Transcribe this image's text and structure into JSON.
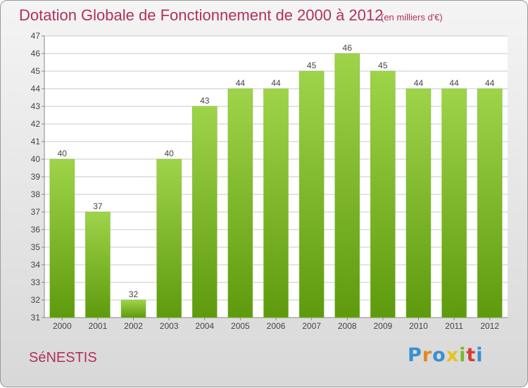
{
  "header": {
    "title": "Dotation Globale de Fonctionnement de 2000 à 2012",
    "unit": "(en milliers d'€)"
  },
  "footer": {
    "commune": "SéNESTIS",
    "brand_letters": [
      "P",
      "r",
      "o",
      "x",
      "i",
      "t",
      "i"
    ],
    "brand_colors": [
      "#3a8fd0",
      "#e08a1e",
      "#3a8fd0",
      "#e8c21c",
      "#7bb82e",
      "#d93a3a",
      "#3a8fd0"
    ]
  },
  "colors": {
    "bar_top": "#9fd44a",
    "bar_bottom": "#5e9a0e",
    "title": "#b03060",
    "grid": "#c8c8c8",
    "axis_text": "#444444"
  },
  "chart_data": {
    "type": "bar",
    "title": "Dotation Globale de Fonctionnement de 2000 à 2012",
    "subtitle": "(en milliers d'€)",
    "categories": [
      "2000",
      "2001",
      "2002",
      "2003",
      "2004",
      "2005",
      "2006",
      "2007",
      "2008",
      "2009",
      "2010",
      "2011",
      "2012"
    ],
    "values": [
      40,
      37,
      32,
      40,
      43,
      44,
      44,
      45,
      46,
      45,
      44,
      44,
      44
    ],
    "ylim": [
      31,
      47
    ],
    "yticks": [
      31,
      32,
      33,
      34,
      35,
      36,
      37,
      38,
      39,
      40,
      41,
      42,
      43,
      44,
      45,
      46,
      47
    ],
    "grid": true,
    "data_labels": true
  }
}
